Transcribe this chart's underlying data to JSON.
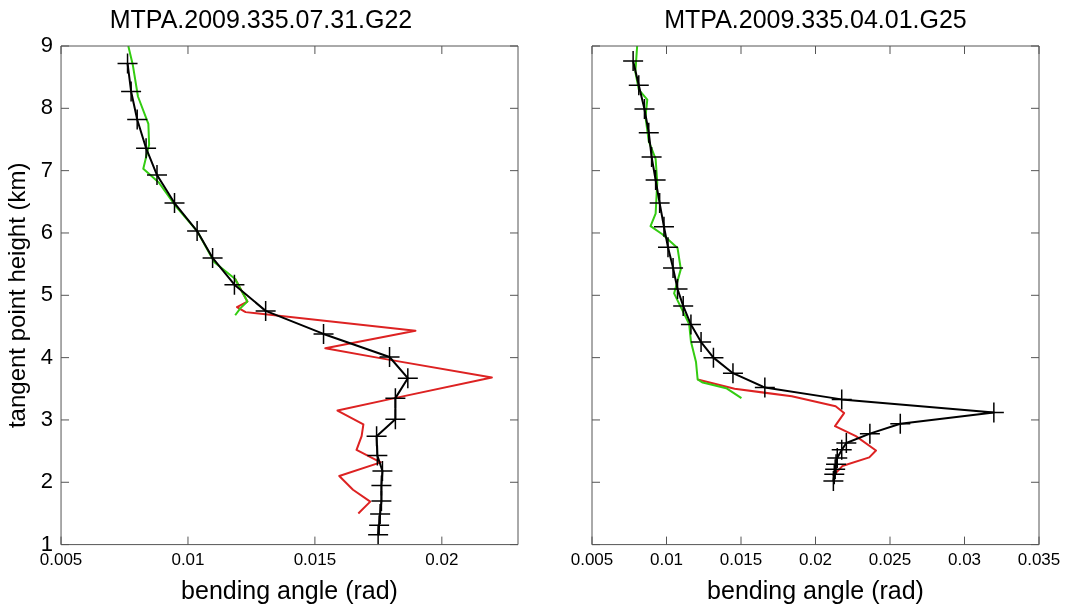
{
  "chart_data": [
    {
      "type": "line",
      "title": "MTPA.2009.335.07.31.G22",
      "xlabel": "bending angle (rad)",
      "ylabel": "tangent point height (km)",
      "xlim": [
        0.005,
        0.023
      ],
      "xticks": [
        0.005,
        0.01,
        0.015,
        0.02
      ],
      "ylim": [
        1,
        9
      ],
      "yticks": [
        1,
        2,
        3,
        4,
        5,
        6,
        7,
        8,
        9
      ],
      "grid": false,
      "legend": false,
      "series": [
        {
          "color": "#dd2222",
          "marker": "none",
          "x": [
            0.01186,
            0.01234,
            0.01193,
            0.01227,
            0.01896,
            0.01541,
            0.01773,
            0.02197,
            0.01814,
            0.01589,
            0.01691,
            0.01684,
            0.01664,
            0.01759,
            0.01596,
            0.0165,
            0.01718,
            0.01671
          ],
          "values": [
            5.26,
            4.9,
            4.81,
            4.73,
            4.43,
            4.15,
            3.98,
            3.68,
            3.35,
            3.15,
            2.93,
            2.74,
            2.52,
            2.32,
            2.1,
            1.88,
            1.69,
            1.5
          ]
        },
        {
          "color": "#33cc11",
          "marker": "none",
          "x": [
            0.00765,
            0.00783,
            0.00803,
            0.00844,
            0.00847,
            0.00824,
            0.00885,
            0.00954,
            0.01036,
            0.01104,
            0.01186,
            0.01234,
            0.01206,
            0.01186
          ],
          "values": [
            9,
            8.69,
            8.19,
            7.75,
            7.42,
            7.03,
            6.81,
            6.42,
            6.03,
            5.53,
            5.26,
            4.9,
            4.79,
            4.68
          ]
        },
        {
          "color": "#000000",
          "marker": "cross",
          "x": [
            0.00762,
            0.00776,
            0.008,
            0.00835,
            0.00878,
            0.00947,
            0.01036,
            0.01097,
            0.01183,
            0.01306,
            0.01534,
            0.01794,
            0.01866,
            0.01817,
            0.01817,
            0.01743,
            0.01746,
            0.01766,
            0.01762,
            0.01762,
            0.01757,
            0.01753,
            0.01749
          ],
          "values": [
            8.72,
            8.27,
            7.82,
            7.36,
            6.93,
            6.48,
            6.03,
            5.6,
            5.17,
            4.75,
            4.38,
            4.01,
            3.67,
            3.35,
            3.01,
            2.74,
            2.43,
            2.18,
            1.95,
            1.7,
            1.49,
            1.31,
            1.16
          ]
        }
      ]
    },
    {
      "type": "line",
      "title": "MTPA.2009.335.04.01.G25",
      "xlabel": "bending angle (rad)",
      "xlim": [
        0.005,
        0.035
      ],
      "xticks": [
        0.005,
        0.01,
        0.015,
        0.02,
        0.025,
        0.03,
        0.035
      ],
      "ylim": [
        1,
        9
      ],
      "yticks": [
        1,
        2,
        3,
        4,
        5,
        6,
        7,
        8,
        9
      ],
      "tick_labels": "x",
      "grid": false,
      "legend": false,
      "series": [
        {
          "color": "#dd2222",
          "marker": "none",
          "x": [
            0.01209,
            0.01457,
            0.01841,
            0.02135,
            0.02192,
            0.02131,
            0.02271,
            0.02406,
            0.02361,
            0.0218,
            0.02117
          ],
          "values": [
            3.65,
            3.5,
            3.38,
            3.22,
            3.11,
            2.9,
            2.74,
            2.51,
            2.4,
            2.26,
            2.1
          ]
        },
        {
          "color": "#33cc11",
          "marker": "none",
          "x": [
            0.00803,
            0.00791,
            0.00814,
            0.00871,
            0.00859,
            0.00881,
            0.00927,
            0.00938,
            0.00927,
            0.00893,
            0.00972,
            0.01074,
            0.01096,
            0.01051,
            0.01096,
            0.01152,
            0.01164,
            0.01198,
            0.01209,
            0.01243,
            0.01401,
            0.01503
          ],
          "values": [
            9,
            8.58,
            8.3,
            8.14,
            7.86,
            7.47,
            7.19,
            6.81,
            6.31,
            6.11,
            5.98,
            5.76,
            5.42,
            5.03,
            4.81,
            4.54,
            4.26,
            3.93,
            3.65,
            3.6,
            3.51,
            3.35
          ]
        },
        {
          "color": "#000000",
          "marker": "cross",
          "x": [
            0.00776,
            0.00814,
            0.00852,
            0.00881,
            0.009,
            0.00927,
            0.00954,
            0.00983,
            0.0101,
            0.01044,
            0.01074,
            0.01112,
            0.01164,
            0.01232,
            0.01315,
            0.01446,
            0.0166,
            0.02176,
            0.03197,
            0.02569,
            0.02365,
            0.02207,
            0.02176,
            0.02146,
            0.02138,
            0.02132,
            0.02126,
            0.0212
          ],
          "values": [
            8.76,
            8.37,
            7.99,
            7.61,
            7.22,
            6.85,
            6.48,
            6.1,
            5.77,
            5.44,
            5.1,
            4.83,
            4.53,
            4.25,
            4,
            3.75,
            3.52,
            3.33,
            3.12,
            2.94,
            2.78,
            2.63,
            2.52,
            2.39,
            2.29,
            2.21,
            2.13,
            2.02
          ]
        }
      ]
    }
  ]
}
